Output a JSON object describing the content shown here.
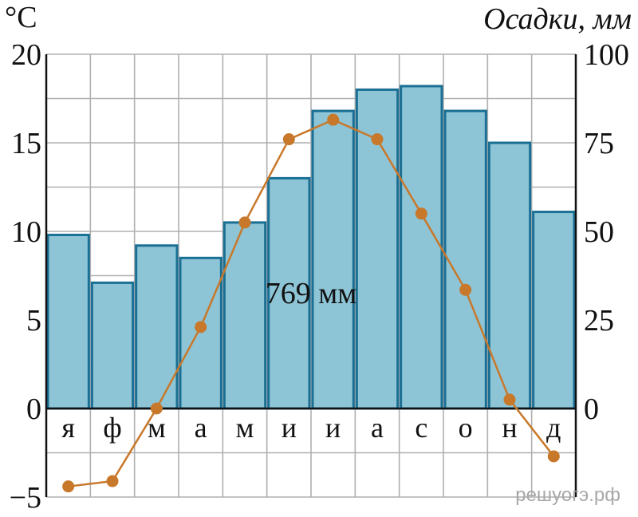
{
  "chart_data": {
    "type": "bar",
    "left_unit": "°C",
    "right_unit": "Осадки, мм",
    "categories": [
      "я",
      "ф",
      "м",
      "а",
      "м",
      "и",
      "и",
      "а",
      "с",
      "о",
      "н",
      "д"
    ],
    "precipitation": {
      "axis": "right",
      "ylim": [
        0,
        100
      ],
      "ticks": [
        "0",
        "25",
        "50",
        "75",
        "100"
      ],
      "values": [
        49,
        35.5,
        46,
        42.5,
        52.5,
        65,
        84,
        90,
        91,
        84,
        75,
        55.5
      ]
    },
    "temperature": {
      "axis": "left",
      "ylim": [
        -5,
        20
      ],
      "ticks": [
        "−5",
        "0",
        "5",
        "10",
        "15",
        "20"
      ],
      "values": [
        -4.4,
        -4.1,
        0,
        4.6,
        10.5,
        15.2,
        16.3,
        15.2,
        11.0,
        6.7,
        0.5,
        -2.7
      ]
    },
    "annual_total": "769 мм",
    "grid": true,
    "colors": {
      "bar_fill": "#8ec5d6",
      "bar_stroke": "#1a6f94",
      "line": "#c8782a",
      "grid": "#b0b0b0"
    }
  },
  "watermark": "решуогэ.рф"
}
